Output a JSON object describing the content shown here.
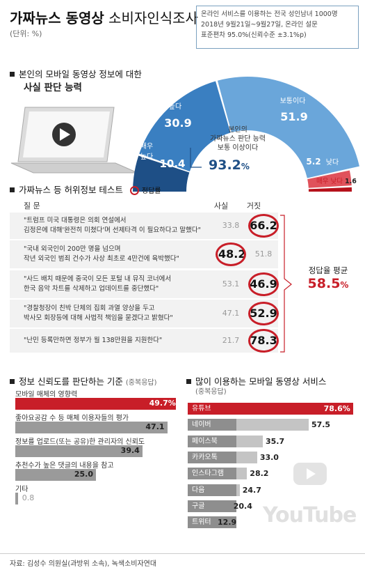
{
  "header": {
    "title_bold": "가짜뉴스 동영상",
    "title_rest": "소비자인식조사",
    "unit": "(단위: %)",
    "survey_line1": "온라인 서비스를 이용하는 전국 성인남녀 1000명",
    "survey_line2": "2018년 9월21일~9월27일, 온라인 설문",
    "survey_line3": "표준편차 95.0%(신뢰수준 ±3.1%p)"
  },
  "section1": {
    "title_line1": "본인의 모바일 동영상 정보에 대한",
    "title_line2": "사실 판단 능력",
    "center_line1": "본인의",
    "center_line2": "가짜뉴스 판단 능력",
    "center_line3": "보통 이상이다",
    "center_value": "93.2",
    "center_unit": "%",
    "segments": [
      {
        "label": "매우 높다",
        "label1": "매우",
        "label2": "높다",
        "value": 10.4,
        "value_text": "10.4",
        "color": "#1e4f86"
      },
      {
        "label": "높다",
        "value": 30.9,
        "value_text": "30.9",
        "color": "#3a7fc1"
      },
      {
        "label": "보통이다",
        "value": 51.9,
        "value_text": "51.9",
        "color": "#6aa6da"
      },
      {
        "label": "낮다",
        "value": 5.2,
        "value_text": "5.2",
        "color": "#e0525b"
      },
      {
        "label": "매우 낮다",
        "value": 1.6,
        "value_text": "1.6",
        "color": "#b5121b"
      }
    ]
  },
  "section2": {
    "title": "가짜뉴스 등 허위정보 테스트",
    "legend": "정답률",
    "col_question": "질 문",
    "col_fact": "사실",
    "col_fake": "거짓",
    "avg_label": "정답율 평균",
    "avg_value": "58.5",
    "avg_unit": "%",
    "rows": [
      {
        "line1": "\"트럼프 미국 대통령은 의회 연설에서",
        "line2": "김정은에 대해'완전히 미쳤다'며 선제타격 이 필요하다고 말했다\"",
        "fact": "33.8",
        "fake": "66.2",
        "answer": "fake"
      },
      {
        "line1": "\"국내 외국인이 200만 명을 넘으며",
        "line2": "작년 외국인 범죄 건수가 사상 최초로 4만건에 육박했다\"",
        "fact": "48.2",
        "fake": "51.8",
        "answer": "fact"
      },
      {
        "line1": "\"사드 배치 때문에 중국이 모든 포털 내 뮤직 코너에서",
        "line2": "한국 음악 차트를 삭제하고 업데이트를 중단했다\"",
        "fact": "53.1",
        "fake": "46.9",
        "answer": "fake"
      },
      {
        "line1": "\"경찰청장이 친박 단체의 집회 과열 양상을 두고",
        "line2": "박사모 회장등에 대해 사법적 책임을 묻겠다고 밝혔다\"",
        "fact": "47.1",
        "fake": "52.9",
        "answer": "fake"
      },
      {
        "line1": "\"난민 등록만하면 정부가 월 138만원을 지원한다\"",
        "line2": "",
        "fact": "21.7",
        "fake": "78.3",
        "answer": "fake"
      }
    ]
  },
  "chart_data": [
    {
      "type": "bar",
      "title": "정보 신뢰도를 판단하는 기준",
      "note": "(중복응답)",
      "categories": [
        "모바일 매체의 영향력",
        "좋아요공감 수 등 매체 이용자들의 평가",
        "정보를 업로드(또는 공유)한 관리자의 신뢰도",
        "추천수가 높은 댓글의 내용을 참고",
        "기타"
      ],
      "values": [
        49.7,
        47.1,
        39.4,
        25.0,
        0.8
      ],
      "value_texts": [
        "49.7%",
        "47.1",
        "39.4",
        "25.0",
        "0.8"
      ],
      "xlim": [
        0,
        50
      ]
    },
    {
      "type": "bar",
      "title": "많이 이용하는 모바일 동영상 서비스",
      "note": "(중복응답)",
      "categories": [
        "유튜브",
        "네이버",
        "페이스북",
        "카카오톡",
        "인스타그램",
        "다음",
        "구글",
        "트위터"
      ],
      "values": [
        78.6,
        57.5,
        35.7,
        33.0,
        28.2,
        24.7,
        20.4,
        12.9
      ],
      "value_texts": [
        "78.6%",
        "57.5",
        "35.7",
        "33.0",
        "28.2",
        "24.7",
        "20.4",
        "12.9"
      ],
      "xlim": [
        0,
        80
      ]
    }
  ],
  "watermark": "YouTube",
  "source": "자료: 김성수 의원실(과방위 소속), 녹색소비자연대",
  "colors": {
    "accent": "#c81e28",
    "blue_dark": "#1e4f86",
    "blue_light": "#6aa6da",
    "bar_gray": "#9a9a9a"
  }
}
